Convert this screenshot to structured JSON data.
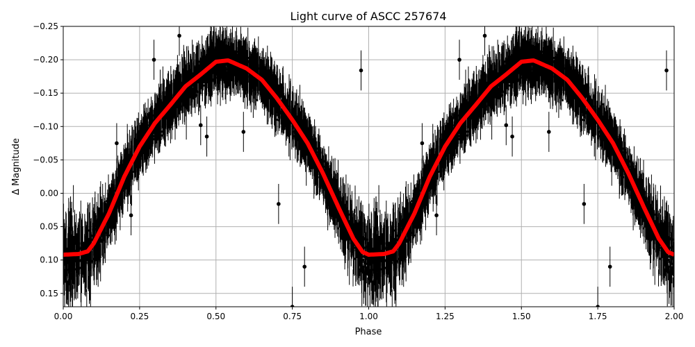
{
  "chart_data": {
    "type": "scatter",
    "title": "Light curve of ASCC 257674",
    "xlabel": "Phase",
    "ylabel": "Δ Magnitude",
    "xlim": [
      0,
      2.0
    ],
    "ylim": [
      0.17,
      -0.25
    ],
    "y_inverted": true,
    "grid": true,
    "x_ticks": [
      "0.00",
      "0.25",
      "0.50",
      "0.75",
      "1.00",
      "1.25",
      "1.50",
      "1.75",
      "2.00"
    ],
    "x_tick_values": [
      0,
      0.25,
      0.5,
      0.75,
      1.0,
      1.25,
      1.5,
      1.75,
      2.0
    ],
    "y_ticks": [
      "−0.25",
      "−0.20",
      "−0.15",
      "−0.10",
      "−0.05",
      "0.00",
      "0.05",
      "0.10",
      "0.15"
    ],
    "y_tick_values": [
      -0.25,
      -0.2,
      -0.15,
      -0.1,
      -0.05,
      0,
      0.05,
      0.1,
      0.15
    ],
    "series": [
      {
        "type": "errorbar-scatter",
        "color": "#000000",
        "note_points": "dense observations with error bars, repeated for phase 1-2",
        "outliers": [
          [
            0.297,
            -0.2
          ],
          [
            0.175,
            -0.075
          ],
          [
            0.59,
            -0.092
          ],
          [
            0.705,
            0.016
          ],
          [
            0.79,
            0.11
          ],
          [
            0.75,
            0.17
          ],
          [
            0.975,
            -0.184
          ],
          [
            0.47,
            -0.085
          ],
          [
            0.45,
            -0.102
          ],
          [
            0.222,
            0.033
          ],
          [
            0.38,
            -0.236
          ]
        ]
      },
      {
        "type": "line",
        "color": "#ff0000",
        "phase": [
          0,
          0.05,
          0.08,
          0.1,
          0.12,
          0.15,
          0.2,
          0.25,
          0.3,
          0.35,
          0.4,
          0.45,
          0.5,
          0.54,
          0.6,
          0.65,
          0.7,
          0.75,
          0.8,
          0.85,
          0.9,
          0.95,
          0.98,
          1.0
        ],
        "magnitude": [
          0.092,
          0.091,
          0.087,
          0.075,
          0.057,
          0.03,
          -0.025,
          -0.07,
          -0.105,
          -0.132,
          -0.16,
          -0.178,
          -0.197,
          -0.199,
          -0.187,
          -0.17,
          -0.142,
          -0.11,
          -0.075,
          -0.03,
          0.02,
          0.068,
          0.088,
          0.092
        ]
      }
    ]
  }
}
